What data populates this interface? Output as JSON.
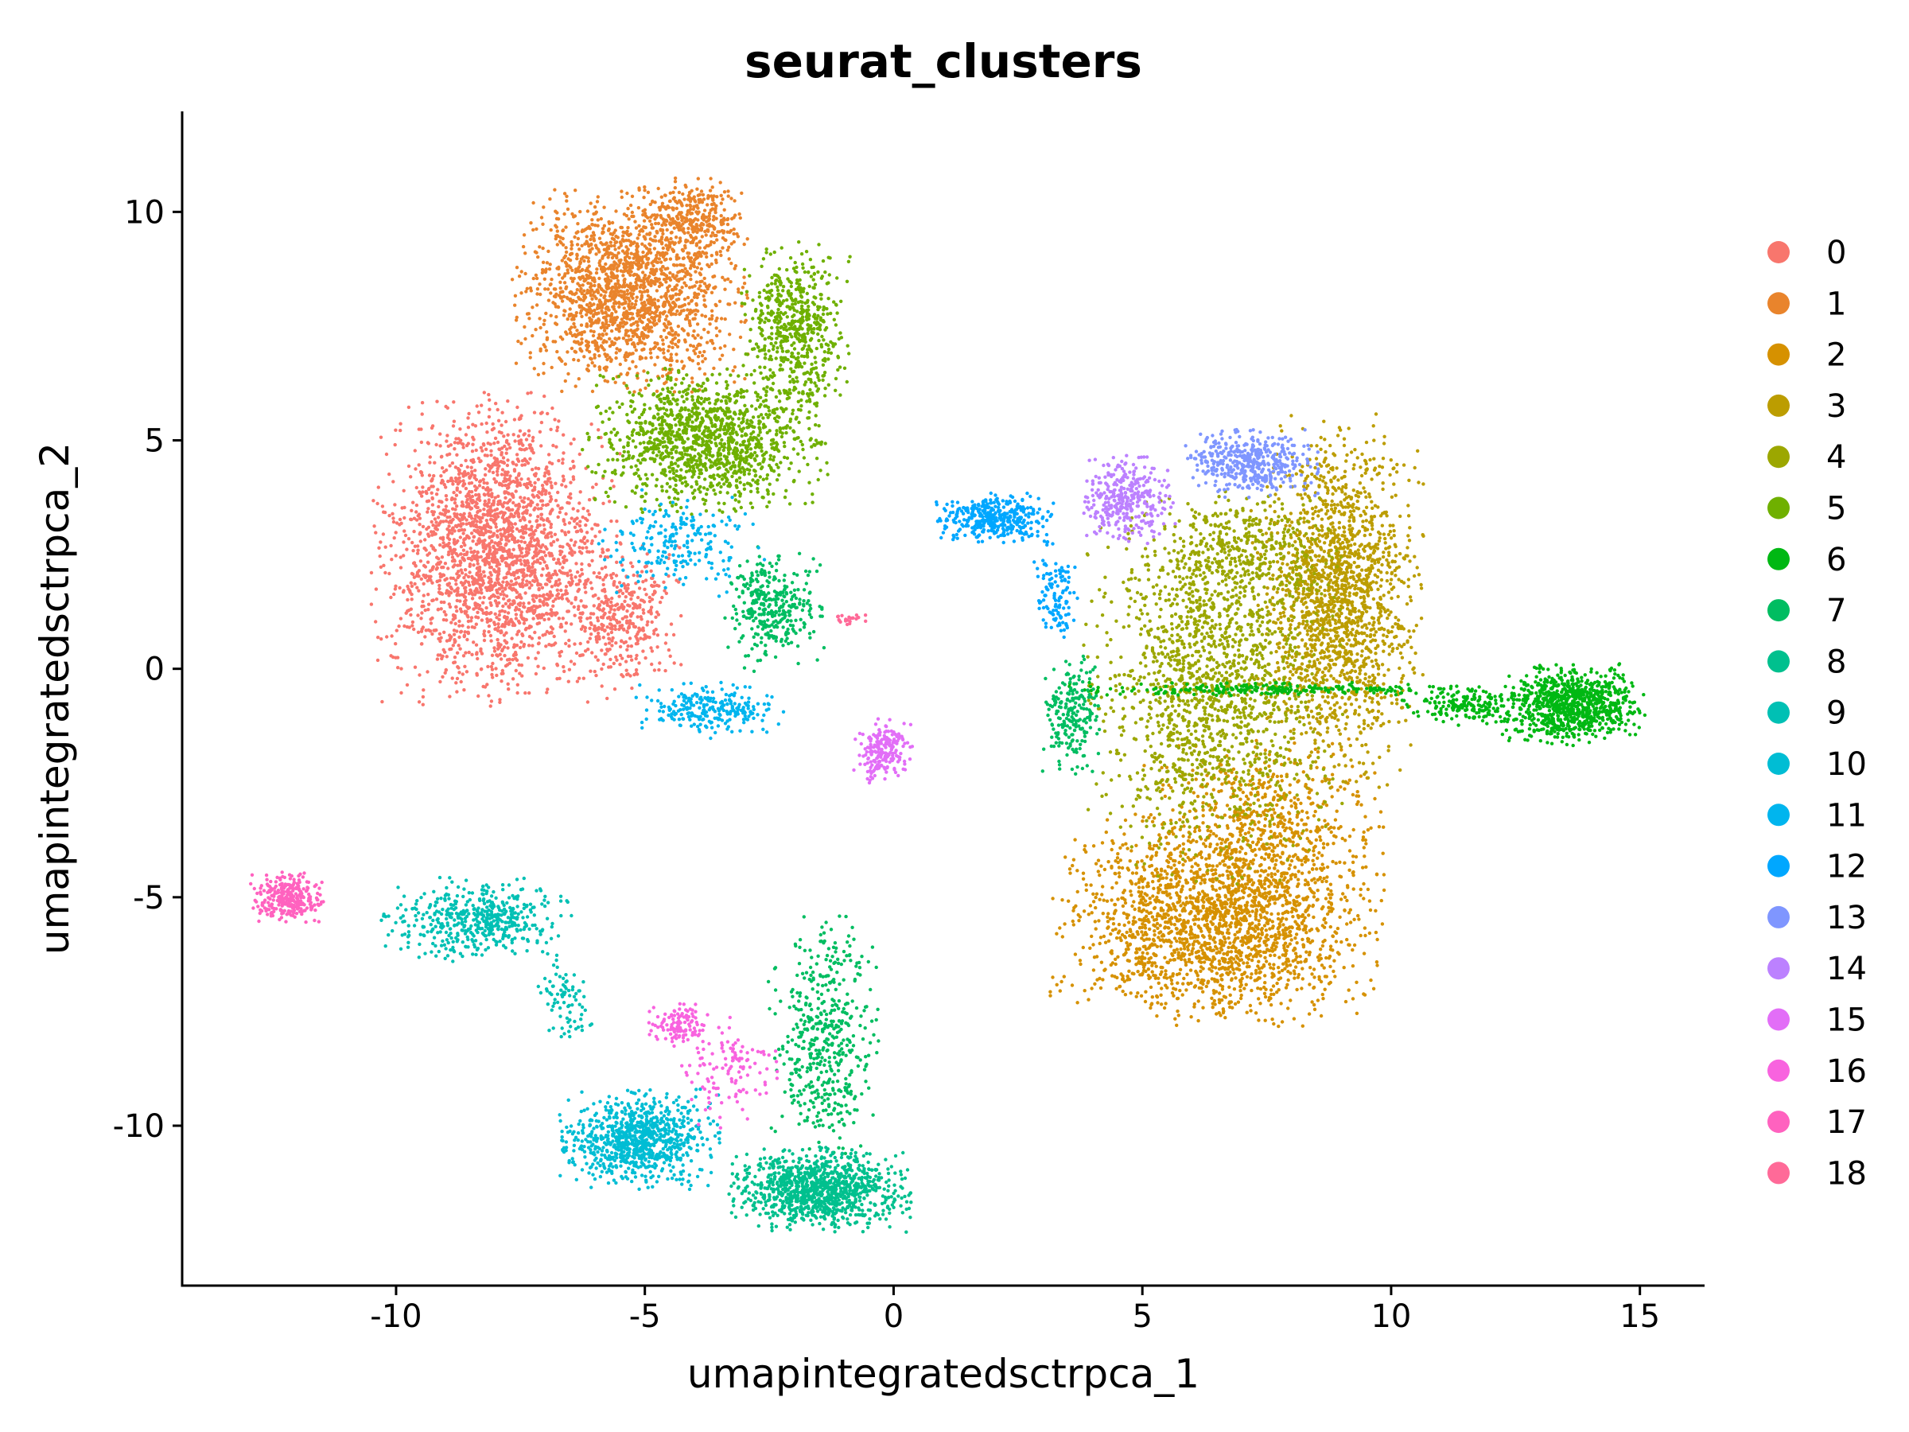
{
  "chart_data": {
    "type": "scatter",
    "title": "seurat_clusters",
    "xlabel": "umapintegratedsctrpca_1",
    "ylabel": "umapintegratedsctrpca_2",
    "xlim": [
      -14.3,
      16.3
    ],
    "ylim": [
      -13.5,
      12.2
    ],
    "xticks": [
      -10,
      -5,
      0,
      5,
      10,
      15
    ],
    "xtick_labels": [
      "-10",
      "-5",
      "0",
      "5",
      "10",
      "15"
    ],
    "yticks": [
      -10,
      -5,
      0,
      5,
      10
    ],
    "ytick_labels": [
      "-10",
      "-5",
      "0",
      "5",
      "10"
    ],
    "grid": false,
    "legend_position": "right",
    "series": [
      {
        "name": "0",
        "color": "#F8766D",
        "regions": [
          {
            "cx": -8.0,
            "cy": 2.6,
            "rx": 2.0,
            "ry": 2.8,
            "n": 2400
          },
          {
            "cx": -5.5,
            "cy": 1.2,
            "rx": 1.0,
            "ry": 1.4,
            "n": 400
          }
        ]
      },
      {
        "name": "1",
        "color": "#E9842C",
        "regions": [
          {
            "cx": -5.3,
            "cy": 8.3,
            "rx": 1.9,
            "ry": 1.8,
            "n": 1800
          },
          {
            "cx": -4.0,
            "cy": 9.8,
            "rx": 0.9,
            "ry": 0.8,
            "n": 300
          }
        ]
      },
      {
        "name": "2",
        "color": "#D69100",
        "regions": [
          {
            "cx": 6.5,
            "cy": -5.5,
            "rx": 2.7,
            "ry": 1.9,
            "n": 2200
          },
          {
            "cx": 7.5,
            "cy": -3.2,
            "rx": 2.0,
            "ry": 1.4,
            "n": 500
          }
        ]
      },
      {
        "name": "3",
        "color": "#BC9D00",
        "regions": [
          {
            "cx": 8.9,
            "cy": 1.5,
            "rx": 1.4,
            "ry": 3.3,
            "n": 1800
          }
        ]
      },
      {
        "name": "4",
        "color": "#9CA700",
        "regions": [
          {
            "cx": 6.4,
            "cy": -0.5,
            "rx": 2.1,
            "ry": 3.4,
            "n": 1600
          },
          {
            "cx": 7.0,
            "cy": 2.5,
            "rx": 1.6,
            "ry": 1.2,
            "n": 400
          }
        ]
      },
      {
        "name": "5",
        "color": "#6FB000",
        "regions": [
          {
            "cx": -3.8,
            "cy": 5.0,
            "rx": 2.0,
            "ry": 1.3,
            "n": 1300
          },
          {
            "cx": -2.0,
            "cy": 7.4,
            "rx": 0.9,
            "ry": 1.6,
            "n": 600
          }
        ]
      },
      {
        "name": "6",
        "color": "#00B813",
        "regions": [
          {
            "cx": 13.6,
            "cy": -0.8,
            "rx": 1.2,
            "ry": 0.75,
            "n": 900
          },
          {
            "cx": 11.5,
            "cy": -0.8,
            "rx": 1.1,
            "ry": 0.35,
            "n": 200
          },
          {
            "cx": 7.5,
            "cy": -0.45,
            "rx": 3.6,
            "ry": 0.12,
            "n": 250
          }
        ]
      },
      {
        "name": "7",
        "color": "#00BD61",
        "regions": [
          {
            "cx": -2.4,
            "cy": 1.3,
            "rx": 0.8,
            "ry": 1.1,
            "n": 350
          },
          {
            "cx": -1.4,
            "cy": -8.2,
            "rx": 0.9,
            "ry": 2.4,
            "n": 500
          },
          {
            "cx": 3.6,
            "cy": -1.0,
            "rx": 0.5,
            "ry": 1.1,
            "n": 220
          }
        ]
      },
      {
        "name": "8",
        "color": "#00C08E",
        "regions": [
          {
            "cx": -1.5,
            "cy": -11.4,
            "rx": 1.5,
            "ry": 0.75,
            "n": 1100
          }
        ]
      },
      {
        "name": "9",
        "color": "#00C0B4",
        "regions": [
          {
            "cx": -8.4,
            "cy": -5.5,
            "rx": 1.6,
            "ry": 0.75,
            "n": 500
          },
          {
            "cx": -6.6,
            "cy": -7.2,
            "rx": 0.5,
            "ry": 0.8,
            "n": 80
          }
        ]
      },
      {
        "name": "10",
        "color": "#00BDD4",
        "regions": [
          {
            "cx": -5.1,
            "cy": -10.3,
            "rx": 1.3,
            "ry": 0.9,
            "n": 900
          }
        ]
      },
      {
        "name": "11",
        "color": "#00B5EE",
        "regions": [
          {
            "cx": -4.3,
            "cy": 2.7,
            "rx": 1.4,
            "ry": 1.0,
            "n": 220
          },
          {
            "cx": -3.7,
            "cy": -0.9,
            "rx": 1.2,
            "ry": 0.5,
            "n": 260
          }
        ]
      },
      {
        "name": "12",
        "color": "#00A7FF",
        "regions": [
          {
            "cx": 2.0,
            "cy": 3.3,
            "rx": 1.0,
            "ry": 0.45,
            "n": 400
          },
          {
            "cx": 3.3,
            "cy": 1.6,
            "rx": 0.4,
            "ry": 1.0,
            "n": 120
          }
        ]
      },
      {
        "name": "13",
        "color": "#7F96FF",
        "regions": [
          {
            "cx": 7.2,
            "cy": 4.5,
            "rx": 1.1,
            "ry": 0.6,
            "n": 450
          }
        ]
      },
      {
        "name": "14",
        "color": "#BC81FF",
        "regions": [
          {
            "cx": 4.7,
            "cy": 3.7,
            "rx": 0.8,
            "ry": 0.8,
            "n": 350
          }
        ]
      },
      {
        "name": "15",
        "color": "#E26EF7",
        "regions": [
          {
            "cx": -0.2,
            "cy": -1.8,
            "rx": 0.5,
            "ry": 0.6,
            "n": 220
          }
        ]
      },
      {
        "name": "16",
        "color": "#F863DF",
        "regions": [
          {
            "cx": -4.3,
            "cy": -7.8,
            "rx": 0.5,
            "ry": 0.4,
            "n": 120
          },
          {
            "cx": -3.3,
            "cy": -8.8,
            "rx": 0.8,
            "ry": 1.0,
            "n": 120
          }
        ]
      },
      {
        "name": "17",
        "color": "#FF62BF",
        "regions": [
          {
            "cx": -12.2,
            "cy": -5.0,
            "rx": 0.6,
            "ry": 0.45,
            "n": 300
          }
        ]
      },
      {
        "name": "18",
        "color": "#FF6A98",
        "regions": [
          {
            "cx": -0.9,
            "cy": 1.1,
            "rx": 0.3,
            "ry": 0.12,
            "n": 25
          }
        ]
      }
    ]
  }
}
